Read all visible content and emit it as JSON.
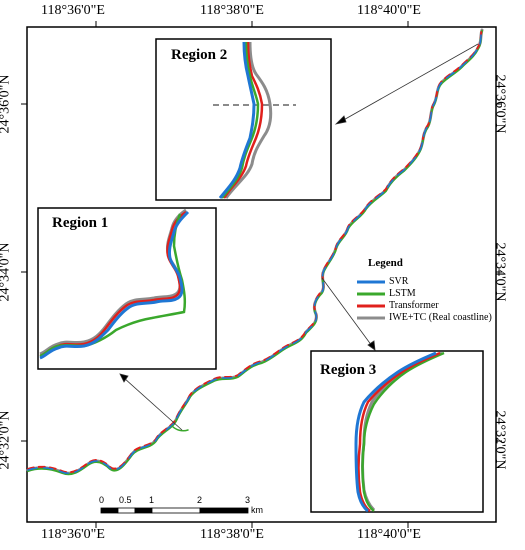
{
  "graticule": {
    "top": [
      "118°36'0\"E",
      "118°38'0\"E",
      "118°40'0\"E"
    ],
    "bottom": [
      "118°36'0\"E",
      "118°38'0\"E",
      "118°40'0\"E"
    ],
    "left": [
      "24°36'0\"N",
      "24°34'0\"N",
      "24°32'0\"N"
    ],
    "right": [
      "24°36'0\"N",
      "24°34'0\"N",
      "24°32'0\"N"
    ]
  },
  "insets": {
    "region1": "Region 1",
    "region2": "Region 2",
    "region3": "Region 3"
  },
  "legend": {
    "title": "Legend",
    "items": [
      {
        "label": "SVR",
        "color": "#1f77d4"
      },
      {
        "label": "LSTM",
        "color": "#3aa82c"
      },
      {
        "label": "Transformer",
        "color": "#e0201c"
      },
      {
        "label": "IWE+TC (Real coastline)",
        "color": "#8c8c8c"
      }
    ]
  },
  "scalebar": {
    "ticks": [
      "0",
      "0.5",
      "1",
      "2",
      "3"
    ],
    "unit": "km"
  }
}
